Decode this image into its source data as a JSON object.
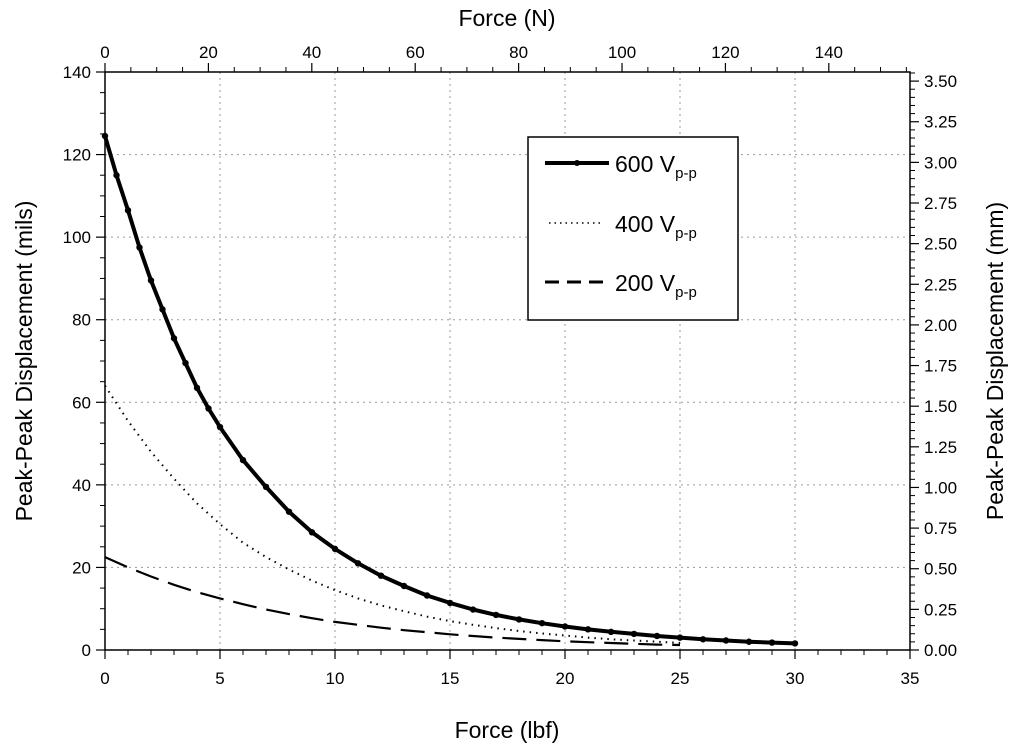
{
  "chart_data": {
    "type": "line",
    "xlabel": "Force (lbf)",
    "x2label": "Force (N)",
    "ylabel": "Peak-Peak Displacement (mils)",
    "y2label": "Peak-Peak Displacement (mm)",
    "xlim": [
      0,
      35
    ],
    "x2lim": [
      0,
      155.7
    ],
    "ylim": [
      0,
      140
    ],
    "y2lim": [
      0,
      3.556
    ],
    "xticks": [
      0,
      5,
      10,
      15,
      20,
      25,
      30,
      35
    ],
    "x2ticks": [
      0,
      20,
      40,
      60,
      80,
      100,
      120,
      140
    ],
    "yticks": [
      0,
      20,
      40,
      60,
      80,
      100,
      120,
      140
    ],
    "y2ticks": [
      "0.00",
      "0.25",
      "0.50",
      "0.75",
      "1.00",
      "1.25",
      "1.50",
      "1.75",
      "2.00",
      "2.25",
      "2.50",
      "2.75",
      "3.00",
      "3.25",
      "3.50"
    ],
    "grid": true,
    "legend_position": "top-right",
    "series": [
      {
        "name": "600 V",
        "name_sub": "p-p",
        "style": "solid-thick-markers",
        "color": "#000000",
        "x": [
          0,
          0.5,
          1,
          1.5,
          2,
          2.5,
          3,
          3.5,
          4,
          4.5,
          5,
          6,
          7,
          8,
          9,
          10,
          11,
          12,
          13,
          14,
          15,
          16,
          17,
          18,
          19,
          20,
          21,
          22,
          23,
          24,
          25,
          26,
          27,
          28,
          29,
          30
        ],
        "y": [
          124.5,
          115,
          106.5,
          97.5,
          89.5,
          82.5,
          75.5,
          69.5,
          63.5,
          58.5,
          54,
          46,
          39.5,
          33.5,
          28.5,
          24.5,
          21,
          18,
          15.5,
          13.2,
          11.4,
          9.8,
          8.5,
          7.4,
          6.5,
          5.7,
          5,
          4.4,
          3.9,
          3.4,
          3,
          2.6,
          2.3,
          2,
          1.8,
          1.6
        ]
      },
      {
        "name": "400 V",
        "name_sub": "p-p",
        "style": "dotted",
        "color": "#000000",
        "x": [
          0,
          1,
          2,
          3,
          4,
          5,
          6,
          7,
          8,
          9,
          10,
          11,
          12,
          13,
          14,
          15,
          16,
          17,
          18,
          19,
          20,
          21,
          22,
          23,
          24,
          25
        ],
        "y": [
          64,
          55.5,
          48,
          41.5,
          35.5,
          30.5,
          26,
          22.5,
          19.5,
          16.8,
          14.5,
          12.5,
          10.8,
          9.4,
          8.1,
          7,
          6.1,
          5.3,
          4.6,
          4,
          3.5,
          3,
          2.6,
          2.3,
          2,
          1.7
        ]
      },
      {
        "name": "200 V",
        "name_sub": "p-p",
        "style": "dashed",
        "color": "#000000",
        "x": [
          0,
          1,
          2,
          3,
          4,
          5,
          6,
          7,
          8,
          9,
          10,
          11,
          12,
          13,
          14,
          15,
          16,
          17,
          18,
          19,
          20,
          21,
          22,
          23,
          24,
          25
        ],
        "y": [
          22.5,
          20,
          17.8,
          15.8,
          14,
          12.5,
          11.1,
          9.8,
          8.7,
          7.7,
          6.8,
          6.1,
          5.4,
          4.8,
          4.3,
          3.8,
          3.4,
          3,
          2.7,
          2.4,
          2.1,
          1.9,
          1.7,
          1.5,
          1.3,
          1.2
        ]
      }
    ]
  }
}
